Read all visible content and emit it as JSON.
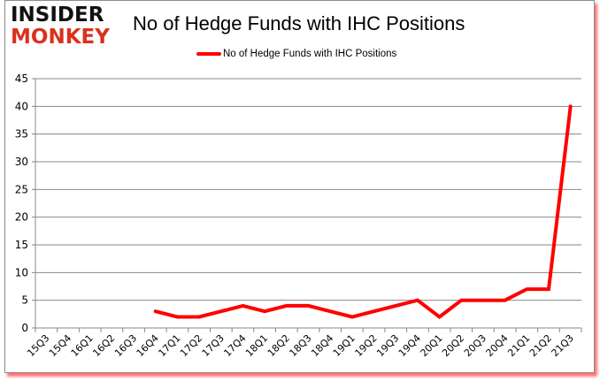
{
  "logo": {
    "line1": "INSIDER",
    "line2": "MONKEY"
  },
  "colors": {
    "line": "#ff0000",
    "grid": "#888888",
    "logo_red": "#d9321e",
    "frame_shadow": "#ff0000"
  },
  "chart_data": {
    "type": "line",
    "title": "No of Hedge Funds with IHC Positions",
    "xlabel": "",
    "ylabel": "",
    "ylim": [
      0,
      45
    ],
    "yticks": [
      0,
      5,
      10,
      15,
      20,
      25,
      30,
      35,
      40,
      45
    ],
    "grid": true,
    "legend_position": "top",
    "categories": [
      "15Q3",
      "15Q4",
      "16Q1",
      "16Q2",
      "16Q3",
      "16Q4",
      "17Q1",
      "17Q2",
      "17Q3",
      "17Q4",
      "18Q1",
      "18Q2",
      "18Q3",
      "18Q4",
      "19Q1",
      "19Q2",
      "19Q3",
      "19Q4",
      "20Q1",
      "20Q2",
      "20Q3",
      "20Q4",
      "21Q1",
      "21Q2",
      "21Q3"
    ],
    "series": [
      {
        "name": "No of Hedge Funds with IHC Positions",
        "values": [
          null,
          null,
          null,
          null,
          null,
          3,
          2,
          2,
          3,
          4,
          3,
          4,
          4,
          3,
          2,
          3,
          4,
          5,
          2,
          5,
          5,
          5,
          7,
          7,
          40
        ]
      }
    ]
  }
}
